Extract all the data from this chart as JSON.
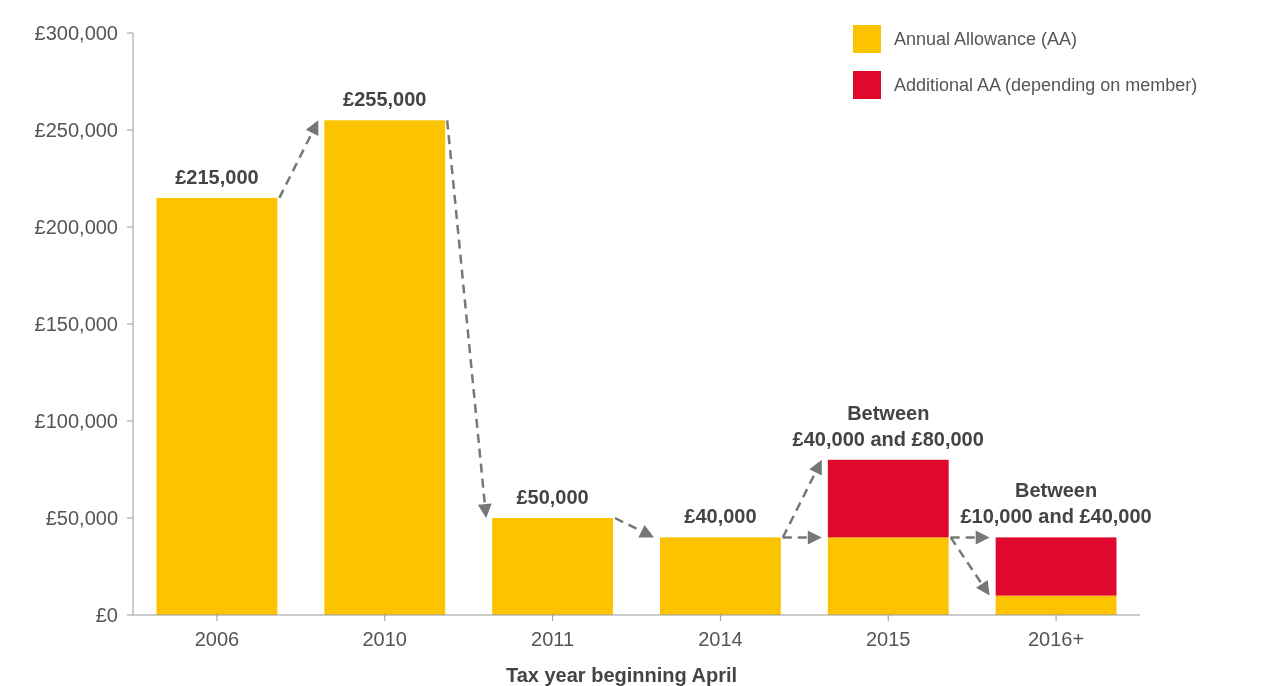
{
  "chart_data": {
    "type": "bar",
    "stacked": true,
    "xlabel": "Tax year beginning April",
    "categories": [
      "2006",
      "2010",
      "2011",
      "2014",
      "2015",
      "2016+"
    ],
    "series": [
      {
        "name": "Annual Allowance (AA)",
        "color": "#fcc400",
        "values": [
          215000,
          255000,
          50000,
          40000,
          40000,
          10000
        ]
      },
      {
        "name": "Additional AA (depending on member)",
        "color": "#e0082d",
        "values": [
          null,
          null,
          null,
          null,
          40000,
          30000
        ]
      }
    ],
    "totals": [
      "£215,000",
      "£255,000",
      "£50,000",
      "£40,000",
      "Between £40,000 and £80,000",
      "Between £10,000 and £40,000"
    ],
    "ylim": [
      0,
      300000
    ],
    "yticks": [
      {
        "value": 0,
        "label": "£0"
      },
      {
        "value": 50000,
        "label": "£50,000"
      },
      {
        "value": 100000,
        "label": "£100,000"
      },
      {
        "value": 150000,
        "label": "£150,000"
      },
      {
        "value": 200000,
        "label": "£200,000"
      },
      {
        "value": 250000,
        "label": "£250,000"
      },
      {
        "value": 300000,
        "label": "£300,000"
      }
    ],
    "grid": false,
    "legend": "top right"
  }
}
